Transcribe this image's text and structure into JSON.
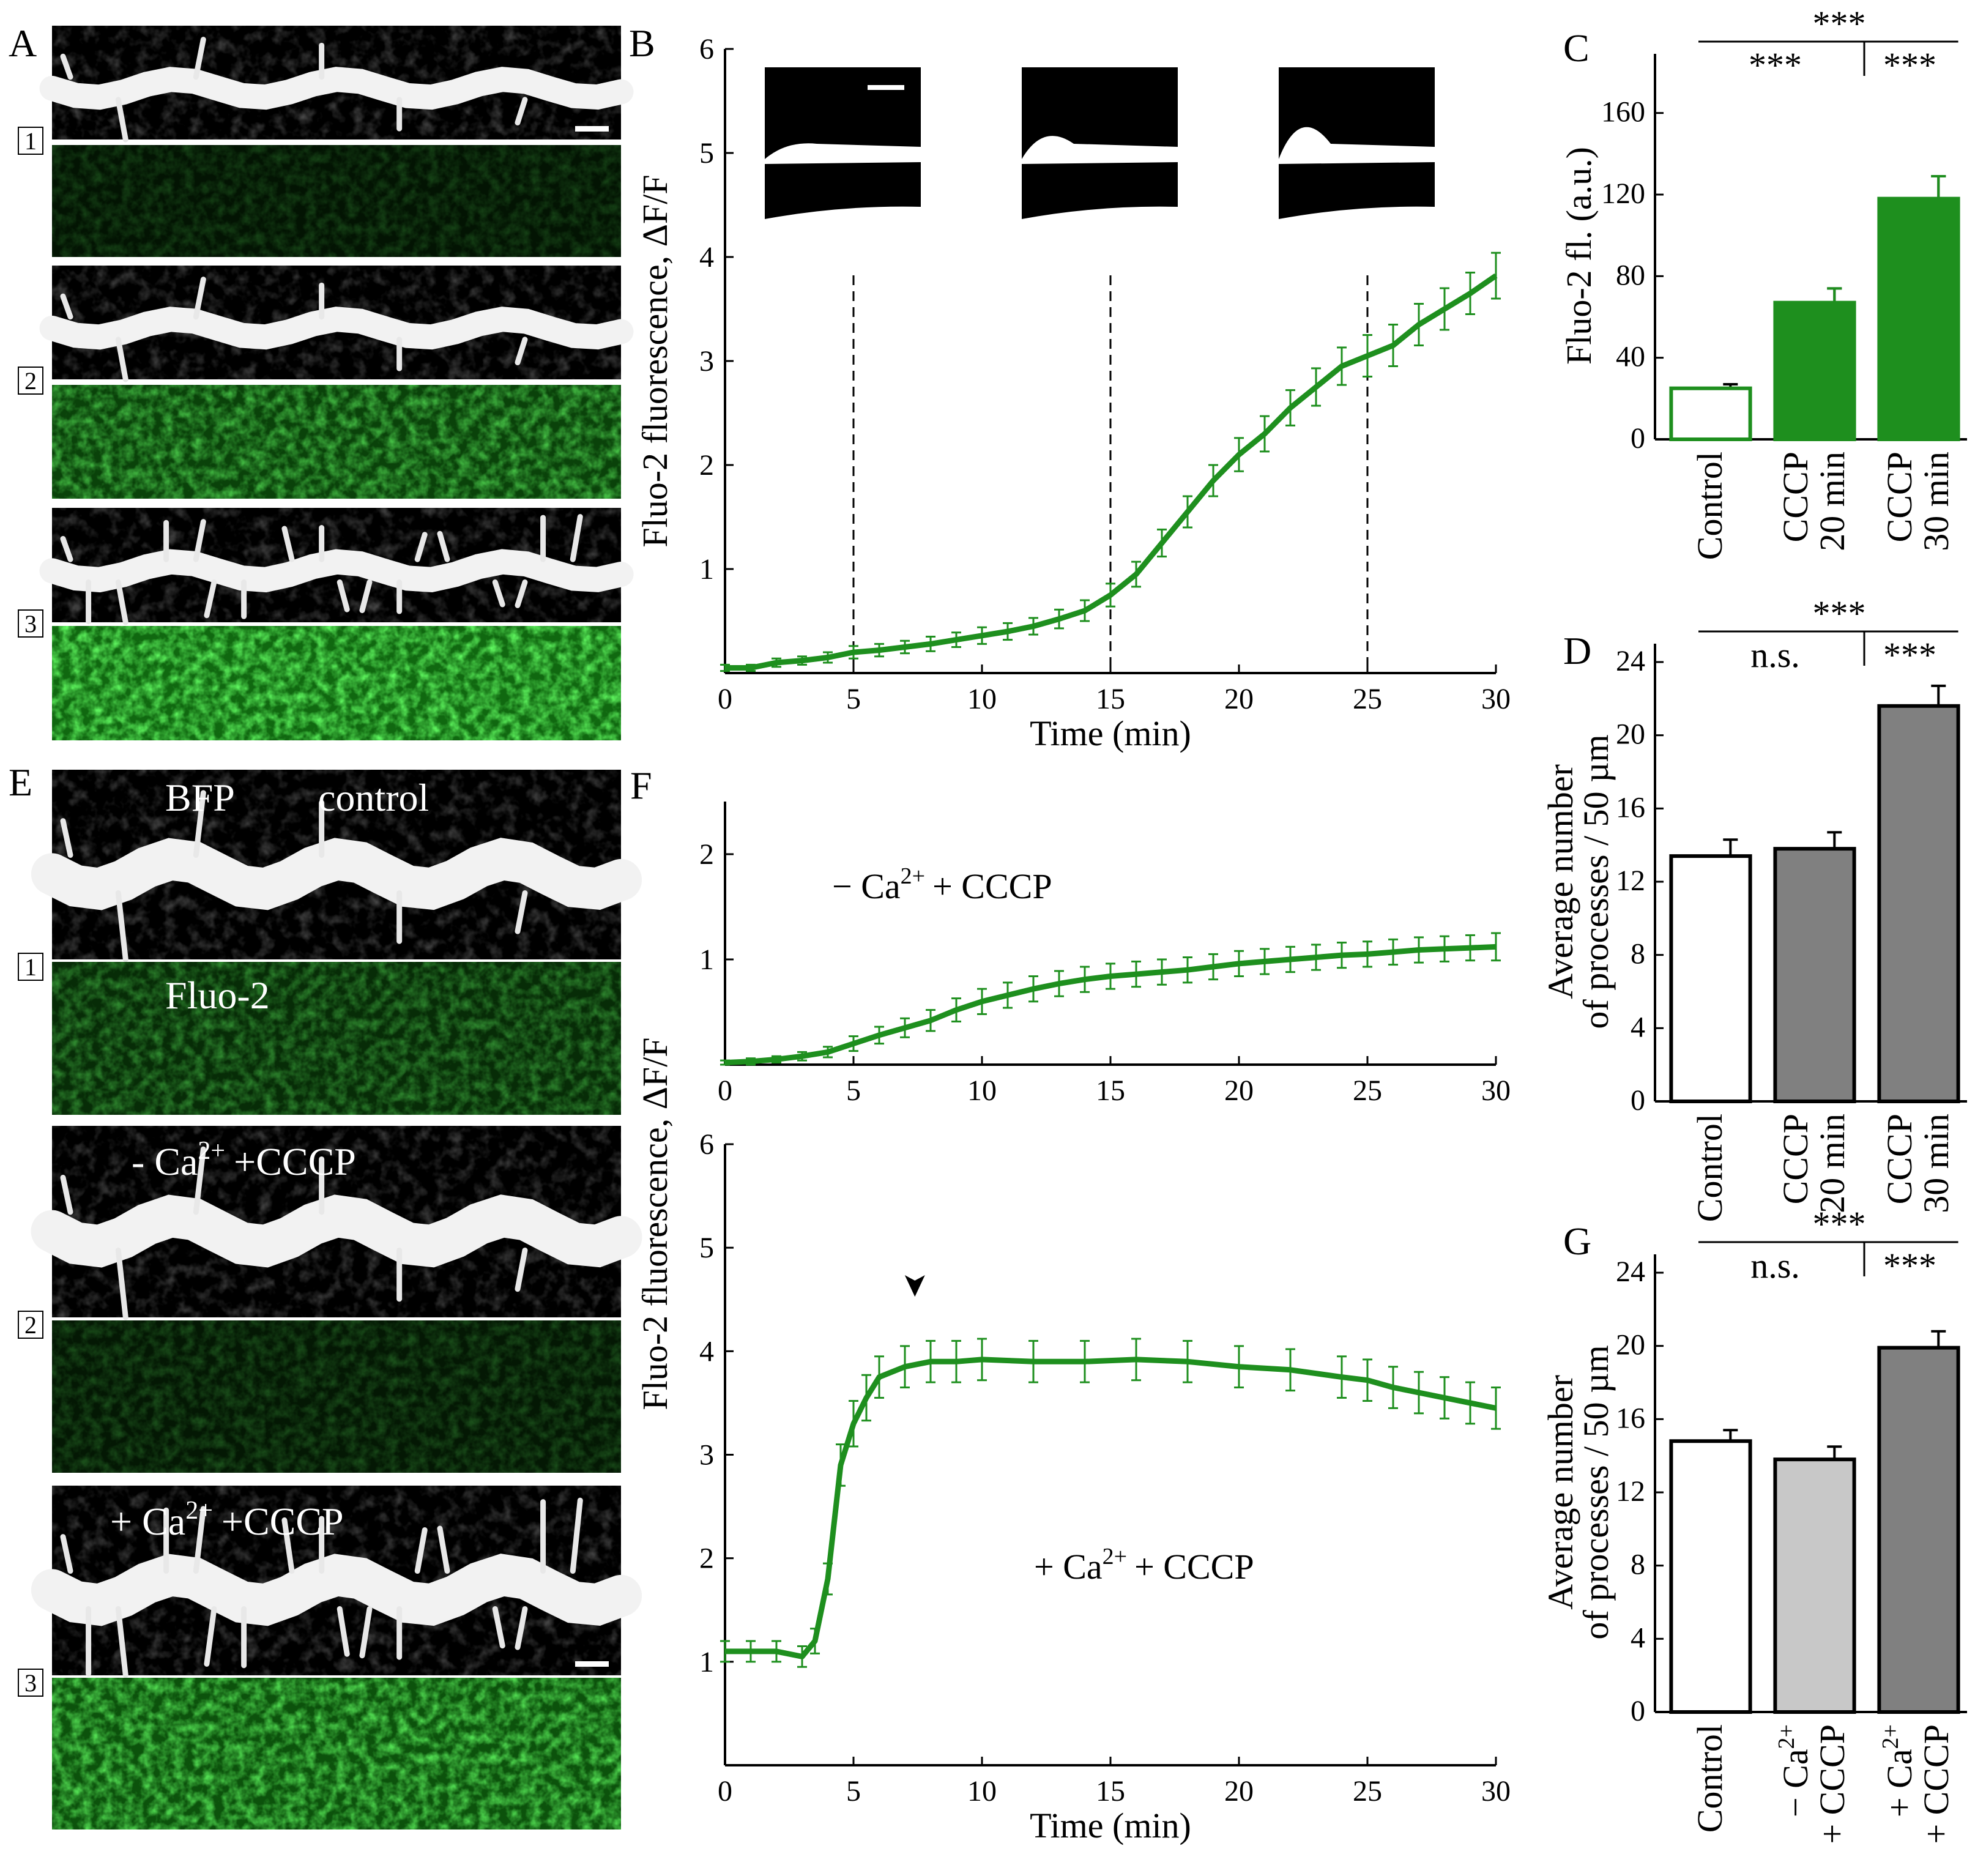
{
  "colors": {
    "green": "#1e8f1e",
    "green_dark": "#138013",
    "gray_dark": "#808080",
    "gray_light": "#c8c8c8",
    "white": "#ffffff",
    "black": "#000000"
  },
  "panel_letters": {
    "A": "A",
    "B": "B",
    "C": "C",
    "D": "D",
    "E": "E",
    "F": "F",
    "G": "G"
  },
  "row_numbers": [
    "1",
    "2",
    "3"
  ],
  "panelA": {
    "description_images": [
      "dendrite",
      "fluo-2",
      "dendrite",
      "fluo-2",
      "dendrite",
      "fluo-2"
    ],
    "green_levels": [
      0.18,
      0.6,
      0.95
    ]
  },
  "panelE": {
    "labels": {
      "bfp": "BFP",
      "control": "control",
      "fluo2": "Fluo-2",
      "minus_ca_prefix": "- Ca",
      "plus_ca_prefix": "+ Ca",
      "sup": "2+",
      "cccp": "+CCCP"
    },
    "green_levels": [
      0.4,
      0.22,
      0.75
    ]
  },
  "chart_data": [
    {
      "id": "B",
      "type": "line",
      "title": "",
      "xlabel": "Time (min)",
      "ylabel": "Fluo-2 fluorescence, ΔF/F",
      "xlim": [
        0,
        30
      ],
      "ylim": [
        0,
        6
      ],
      "xticks": [
        "0",
        "5",
        "10",
        "15",
        "20",
        "25",
        "30"
      ],
      "yticks": [
        "1",
        "2",
        "3",
        "4",
        "5",
        "6"
      ],
      "dashed_lines_x": [
        5,
        15,
        25
      ],
      "series": [
        {
          "name": "Fluo-2",
          "x": [
            0,
            1,
            2,
            3,
            4,
            5,
            6,
            7,
            8,
            9,
            10,
            11,
            12,
            13,
            14,
            15,
            16,
            17,
            18,
            19,
            20,
            21,
            22,
            23,
            24,
            25,
            26,
            27,
            28,
            29,
            30
          ],
          "y": [
            0.05,
            0.05,
            0.1,
            0.12,
            0.15,
            0.2,
            0.22,
            0.25,
            0.28,
            0.32,
            0.36,
            0.4,
            0.45,
            0.52,
            0.6,
            0.75,
            0.95,
            1.25,
            1.55,
            1.85,
            2.1,
            2.3,
            2.55,
            2.75,
            2.95,
            3.05,
            3.15,
            3.35,
            3.5,
            3.65,
            3.82
          ],
          "err": [
            0.03,
            0.03,
            0.04,
            0.04,
            0.05,
            0.06,
            0.06,
            0.06,
            0.07,
            0.07,
            0.08,
            0.08,
            0.08,
            0.09,
            0.1,
            0.11,
            0.12,
            0.13,
            0.15,
            0.15,
            0.16,
            0.17,
            0.17,
            0.18,
            0.18,
            0.2,
            0.2,
            0.2,
            0.2,
            0.2,
            0.22
          ]
        }
      ]
    },
    {
      "id": "C",
      "type": "bar",
      "ylabel": "Fluo-2 fl. (a.u.)",
      "ylim": [
        0,
        180
      ],
      "yticks": [
        0,
        40,
        80,
        120,
        160
      ],
      "categories": [
        [
          "Control"
        ],
        [
          "CCCP",
          "20 min"
        ],
        [
          "CCCP",
          "30 min"
        ]
      ],
      "values": [
        25,
        67,
        118
      ],
      "err": [
        2,
        7,
        11
      ],
      "fills": [
        "#ffffff",
        "#1e8f1e",
        "#1e8f1e"
      ],
      "significance": {
        "top": "***",
        "left": "***",
        "right": "***"
      }
    },
    {
      "id": "D",
      "type": "bar",
      "ylabel": "Average number of processes / 50 µm",
      "ylabel_lines": [
        "Average number",
        "of processes / 50 µm"
      ],
      "ylim": [
        0,
        24
      ],
      "yticks": [
        0,
        4,
        8,
        12,
        16,
        20,
        24
      ],
      "categories": [
        [
          "Control"
        ],
        [
          "CCCP",
          "20 min"
        ],
        [
          "CCCP",
          "30 min"
        ]
      ],
      "values": [
        13.4,
        13.8,
        21.6
      ],
      "err": [
        0.9,
        0.9,
        1.1
      ],
      "fills": [
        "#ffffff",
        "#808080",
        "#808080"
      ],
      "significance": {
        "top": "***",
        "left": "n.s.",
        "right": "***"
      }
    },
    {
      "id": "F_top",
      "type": "line",
      "label": "− Ca",
      "label_sup": "2+",
      "label_tail": "+ CCCP",
      "xlim": [
        0,
        30
      ],
      "ylim": [
        0,
        2.5
      ],
      "xticks": [
        "0",
        "5",
        "10",
        "15",
        "20",
        "25",
        "30"
      ],
      "yticks": [
        "1",
        "2"
      ],
      "series": [
        {
          "name": "-Ca2+ + CCCP",
          "x": [
            0,
            1,
            2,
            3,
            4,
            5,
            6,
            7,
            8,
            9,
            10,
            11,
            12,
            13,
            14,
            15,
            16,
            17,
            18,
            19,
            20,
            21,
            22,
            23,
            24,
            25,
            26,
            27,
            28,
            29,
            30
          ],
          "y": [
            0.02,
            0.03,
            0.05,
            0.08,
            0.12,
            0.2,
            0.28,
            0.35,
            0.42,
            0.52,
            0.6,
            0.66,
            0.72,
            0.77,
            0.81,
            0.84,
            0.86,
            0.88,
            0.9,
            0.93,
            0.96,
            0.98,
            1.0,
            1.02,
            1.04,
            1.05,
            1.07,
            1.09,
            1.1,
            1.11,
            1.12
          ],
          "err": [
            0.02,
            0.03,
            0.03,
            0.04,
            0.05,
            0.07,
            0.08,
            0.09,
            0.1,
            0.11,
            0.12,
            0.12,
            0.12,
            0.12,
            0.12,
            0.12,
            0.12,
            0.12,
            0.12,
            0.12,
            0.12,
            0.12,
            0.12,
            0.12,
            0.12,
            0.12,
            0.12,
            0.12,
            0.12,
            0.12,
            0.13
          ]
        }
      ]
    },
    {
      "id": "F_bottom",
      "type": "line",
      "xlabel": "Time (min)",
      "ylabel": "Fluo-2 fluorescence,  ΔF/F",
      "label": "+ Ca",
      "label_sup": "2+",
      "label_tail": "+ CCCP",
      "arrow_x": 7,
      "arrow_glyph": "➤",
      "xlim": [
        0,
        30
      ],
      "ylim": [
        0,
        6
      ],
      "xticks": [
        "0",
        "5",
        "10",
        "15",
        "20",
        "25",
        "30"
      ],
      "yticks": [
        "1",
        "2",
        "3",
        "4",
        "5",
        "6"
      ],
      "series": [
        {
          "name": "+Ca2+ + CCCP",
          "x": [
            0,
            1,
            2,
            3,
            3.5,
            4,
            4.5,
            5,
            5.5,
            6,
            7,
            8,
            9,
            10,
            12,
            14,
            16,
            18,
            20,
            22,
            24,
            25,
            26,
            27,
            28,
            29,
            30
          ],
          "y": [
            1.1,
            1.1,
            1.1,
            1.05,
            1.2,
            1.8,
            2.9,
            3.3,
            3.55,
            3.75,
            3.85,
            3.9,
            3.9,
            3.92,
            3.9,
            3.9,
            3.92,
            3.9,
            3.85,
            3.82,
            3.75,
            3.72,
            3.65,
            3.6,
            3.55,
            3.5,
            3.45
          ],
          "err": [
            0.1,
            0.1,
            0.1,
            0.1,
            0.12,
            0.15,
            0.2,
            0.22,
            0.22,
            0.2,
            0.2,
            0.2,
            0.2,
            0.2,
            0.2,
            0.2,
            0.2,
            0.2,
            0.2,
            0.2,
            0.2,
            0.2,
            0.2,
            0.2,
            0.2,
            0.2,
            0.2
          ]
        }
      ]
    },
    {
      "id": "G",
      "type": "bar",
      "ylabel": "Average number of processes / 50 µm",
      "ylabel_lines": [
        "Average number",
        "of processes / 50 µm"
      ],
      "ylim": [
        0,
        24
      ],
      "yticks": [
        0,
        4,
        8,
        12,
        16,
        20,
        24
      ],
      "categories": [
        [
          "Control"
        ],
        [
          "− Ca",
          "+ CCCP"
        ],
        [
          "+ Ca",
          "+ CCCP"
        ]
      ],
      "category_sup": [
        "",
        "2+",
        "2+"
      ],
      "values": [
        14.8,
        13.8,
        19.9
      ],
      "err": [
        0.6,
        0.7,
        0.9
      ],
      "fills": [
        "#ffffff",
        "#c8c8c8",
        "#808080"
      ],
      "significance": {
        "top": "***",
        "left": "n.s.",
        "right": "***"
      }
    }
  ]
}
